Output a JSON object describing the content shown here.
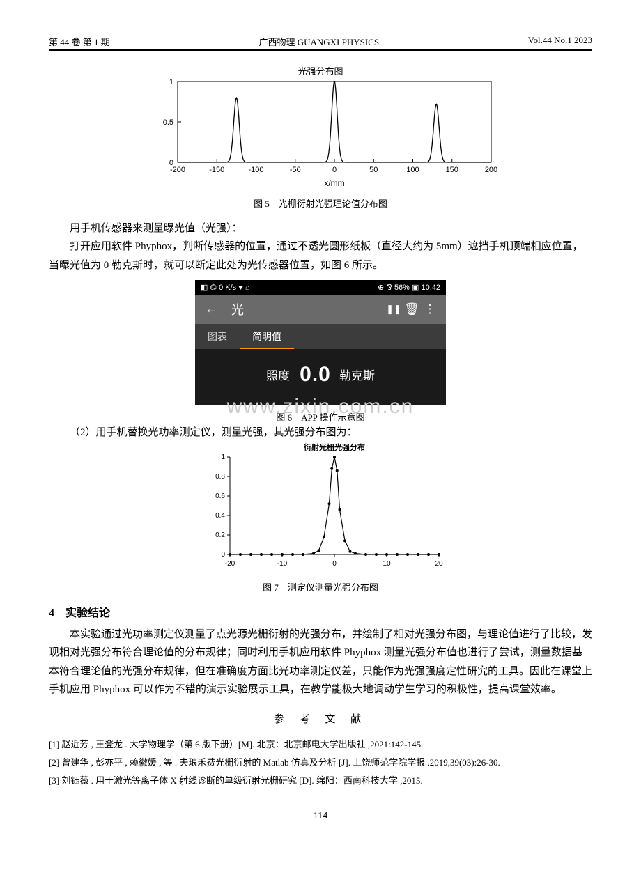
{
  "header": {
    "left": "第 44 卷  第 1 期",
    "center": "广西物理  GUANGXI PHYSICS",
    "right": "Vol.44  No.1  2023"
  },
  "fig5": {
    "title": "光强分布图",
    "xlabel": "x/mm",
    "xlim": [
      -200,
      200
    ],
    "ylim": [
      0,
      1
    ],
    "xticks": [
      -200,
      -150,
      -100,
      -50,
      0,
      50,
      100,
      150,
      200
    ],
    "yticks": [
      0,
      0.5,
      1
    ],
    "line_color": "#000000",
    "box_color": "#000000",
    "bg_color": "#ffffff",
    "peaks": [
      {
        "x": -125,
        "h": 0.8
      },
      {
        "x": 0,
        "h": 1.0
      },
      {
        "x": 130,
        "h": 0.72
      }
    ],
    "peak_sigma": 3.5,
    "caption": "图 5　光栅衍射光强理论值分布图"
  },
  "para1": "用手机传感器来测量曝光值（光强）：",
  "para2": "打开应用软件 Phyphox，判断传感器的位置，通过不透光圆形纸板（直径大约为 5mm）遮挡手机顶端相应位置，当曝光值为 0 勒克斯时，就可以断定此处为光传感器位置，如图 6 所示。",
  "phone": {
    "status_left": "◧ ⌬ 0 K/s ♥ ⌂",
    "status_right": "⊕ ⅋ 56% ▣ 10:42",
    "back_icon": "←",
    "title": "光",
    "pause_icon": "❚❚",
    "delete_icon": "🗑",
    "more_icon": "⋮",
    "tab1": "图表",
    "tab2": "简明值",
    "label": "照度",
    "value": "0.0",
    "unit": "勒克斯"
  },
  "fig6_caption": "图 6　APP 操作示意图",
  "watermark": "www.zixin.com.cn",
  "para3": "（2）用手机替换光功率测定仪，测量光强，其光强分布图为：",
  "fig7": {
    "title": "衍射光栅光强分布",
    "xlim": [
      -20,
      20
    ],
    "ylim": [
      0,
      1
    ],
    "xticks": [
      -20,
      -10,
      0,
      10,
      20
    ],
    "yticks": [
      0,
      0.2,
      0.4,
      0.6,
      0.8,
      1
    ],
    "line_color": "#000000",
    "marker": "circle",
    "marker_size": 2.0,
    "bg_color": "#ffffff",
    "x_data": [
      -20,
      -18,
      -16,
      -14,
      -12,
      -10,
      -8,
      -6,
      -4,
      -3,
      -2,
      -1,
      -0.5,
      0,
      0.5,
      1,
      2,
      3,
      4,
      6,
      8,
      10,
      12,
      14,
      16,
      18,
      20
    ],
    "y_data": [
      0,
      0,
      0,
      0,
      0,
      0,
      0,
      0,
      0.01,
      0.04,
      0.18,
      0.52,
      0.88,
      1.0,
      0.86,
      0.46,
      0.14,
      0.03,
      0.01,
      0,
      0,
      0,
      0,
      0,
      0,
      0,
      0
    ],
    "caption": "图 7　测定仪测量光强分布图"
  },
  "section4": {
    "heading": "4　实验结论",
    "body": "本实验通过光功率测定仪测量了点光源光栅衍射的光强分布，并绘制了相对光强分布图，与理论值进行了比较，发现相对光强分布符合理论值的分布规律；同时利用手机应用软件 Phyphox 测量光强分布值也进行了尝试，测量数据基本符合理论值的光强分布规律，但在准确度方面比光功率测定仪差，只能作为光强强度定性研究的工具。因此在课堂上手机应用 Phyphox 可以作为不错的演示实验展示工具，在教学能极大地调动学生学习的积极性，提高课堂效率。"
  },
  "refs": {
    "title": "参 考 文 献",
    "items": [
      "[1] 赵近芳 , 王登龙 . 大学物理学（第 6 版下册）[M]. 北京：北京邮电大学出版社 ,2021:142-145.",
      "[2] 曾建华 , 彭亦平 , 赖徽媛 , 等 . 夫琅禾费光栅衍射的 Matlab 仿真及分析 [J]. 上饶师范学院学报 ,2019,39(03):26-30.",
      "[3] 刘钰薇 . 用于激光等离子体 X 射线诊断的单级衍射光栅研究 [D]. 绵阳：西南科技大学 ,2015."
    ]
  },
  "page_number": "114"
}
